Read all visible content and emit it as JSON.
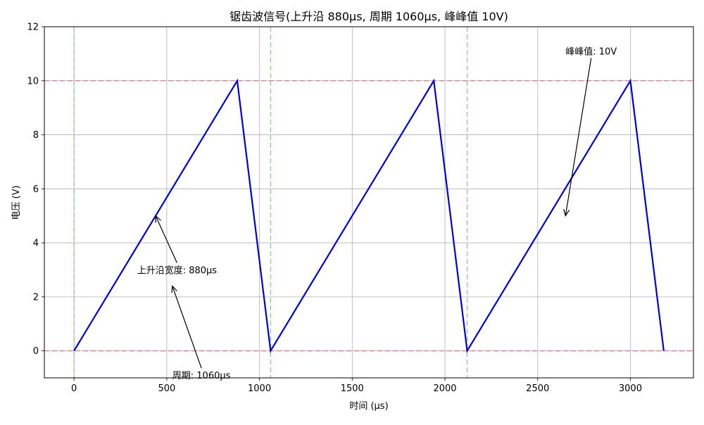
{
  "chart_data": {
    "type": "line",
    "title": "锯齿波信号(上升沿 880μs, 周期 1060μs, 峰峰值 10V)",
    "xlabel": "时间 (μs)",
    "ylabel": "电压 (V)",
    "xlim": [
      -160,
      3340
    ],
    "ylim": [
      -1,
      12
    ],
    "xticks": [
      0,
      500,
      1000,
      1500,
      2000,
      2500,
      3000
    ],
    "yticks": [
      0,
      2,
      4,
      6,
      8,
      10,
      12
    ],
    "grid": true,
    "series": [
      {
        "x": [
          0,
          880,
          1060,
          1940,
          2120,
          3000,
          3180
        ],
        "y": [
          0,
          10,
          0,
          10,
          0,
          10,
          0
        ],
        "color": "#0000dd"
      }
    ],
    "hlines": [
      {
        "y": 0,
        "color": "#e87878"
      },
      {
        "y": 10,
        "color": "#e87878"
      }
    ],
    "vlines": [
      {
        "x": 0,
        "color": "#88cc88"
      },
      {
        "x": 1060,
        "color": "#88cc88"
      },
      {
        "x": 2120,
        "color": "#88cc88"
      }
    ],
    "annotations": [
      {
        "text": "上升沿宽度: 880μs",
        "text_x": 340,
        "text_y": 3.0,
        "arrow_x": 440,
        "arrow_y": 5.0
      },
      {
        "text": "周期: 1060μs",
        "text_x": 530,
        "text_y": -0.9,
        "arrow_x": 530,
        "arrow_y": 2.4
      },
      {
        "text": "峰峰值: 10V",
        "text_x": 2650,
        "text_y": 11.1,
        "arrow_x": 2650,
        "arrow_y": 5.0
      }
    ]
  }
}
